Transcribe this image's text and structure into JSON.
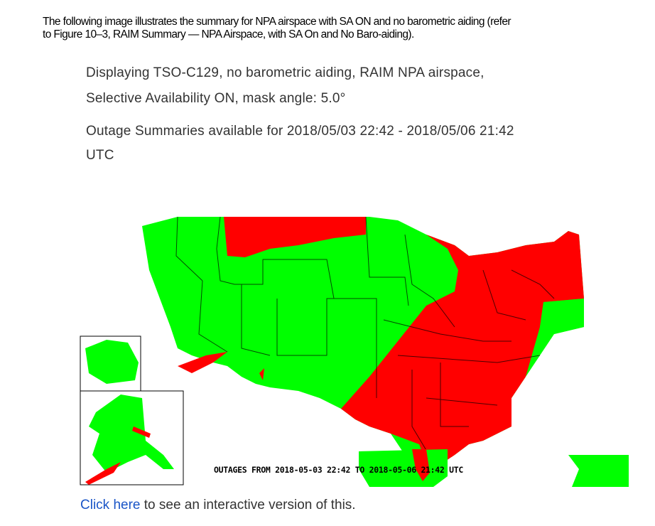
{
  "intro": {
    "line1": "The following image illustrates the summary for NPA airspace with SA ON and no barometric aiding (refer",
    "line2": "to Figure 10–3, RAIM Summary — NPA Airspace, with SA On and No Baro-aiding)."
  },
  "description": {
    "line1": "Displaying TSO-C129, no barometric aiding, RAIM NPA airspace,",
    "line2": "Selective Availability ON, mask angle: 5.0°",
    "line3": "Outage Summaries available for 2018/05/03 22:42 - 2018/05/06 21:42",
    "line4": "UTC"
  },
  "map": {
    "caption": "OUTAGES FROM 2018-05-03 22:42 TO 2018-05-06 21:42 UTC",
    "colors": {
      "available": "#00ff00",
      "outage": "#ff0000"
    }
  },
  "link": {
    "text": "Click here",
    "suffix": " to see an interactive version of this."
  }
}
